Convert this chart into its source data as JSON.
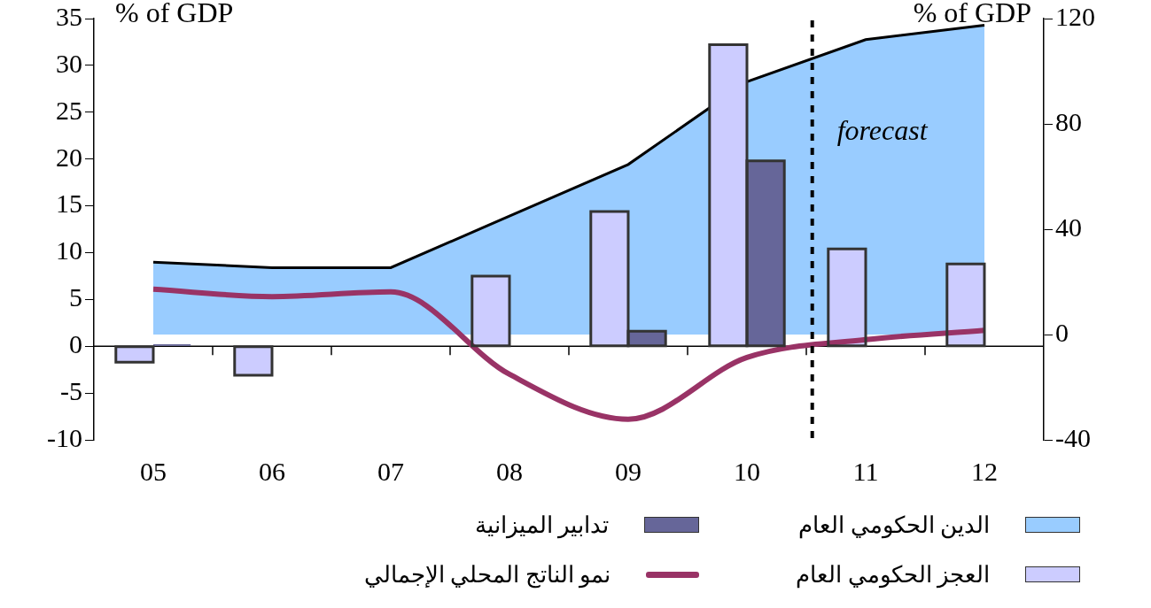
{
  "chart_data": {
    "type": "bar",
    "ylabel": "% of GDP",
    "y2label": "% of GDP",
    "x": [
      2005,
      2006,
      2007,
      2008,
      2009,
      2010,
      2011,
      2012
    ],
    "xlim": [
      2004.5,
      2012.5
    ],
    "xticks": [
      {
        "value": 2005,
        "label": "05"
      },
      {
        "value": 2005.5,
        "label": null
      },
      {
        "value": 2006,
        "label": "06"
      },
      {
        "value": 2006.5,
        "label": null
      },
      {
        "value": 2007,
        "label": "07"
      },
      {
        "value": 2007.5,
        "label": null
      },
      {
        "value": 2008,
        "label": "08"
      },
      {
        "value": 2008.5,
        "label": null
      },
      {
        "value": 2009,
        "label": "09"
      },
      {
        "value": 2009.5,
        "label": null
      },
      {
        "value": 2010,
        "label": "10"
      },
      {
        "value": 2010.5,
        "label": null
      },
      {
        "value": 2011,
        "label": "11"
      },
      {
        "value": 2011.5,
        "label": null
      },
      {
        "value": 2012,
        "label": "12"
      }
    ],
    "ylim": [
      -10,
      35
    ],
    "yticks": [
      -10,
      -5,
      0,
      5,
      10,
      15,
      20,
      25,
      30,
      35
    ],
    "y2lim": [
      -40,
      120
    ],
    "y2ticks": [
      -40,
      0,
      40,
      80,
      120
    ],
    "series": [
      {
        "name": "الدين الحكومي العام",
        "type": "area",
        "axis": "y2",
        "color": "#99ccff",
        "values": [
          27.5,
          25.4,
          25.4,
          45,
          64.6,
          96,
          112,
          117.5
        ]
      },
      {
        "name": "العجز الحكومي العام",
        "color": "#ccccff",
        "values": [
          -1.7,
          -3.1,
          null,
          7.5,
          14.4,
          32.2,
          10.4,
          8.8
        ]
      },
      {
        "name": "تدابير الميزانية",
        "color": "#666699",
        "values": [
          0.2,
          null,
          null,
          null,
          1.6,
          19.8,
          null,
          null
        ]
      },
      {
        "name": "نمو الناتج المحلي الإجمالي",
        "type": "line",
        "color": "#993366",
        "values": [
          6.1,
          5.3,
          5.8,
          -3,
          -7.8,
          -1.2,
          0.7,
          1.7
        ]
      }
    ],
    "ref_lines": [
      {
        "axis": "x",
        "value": 2010.55,
        "label": "forecast",
        "line_style": "dashed",
        "color": "#000000"
      }
    ],
    "marker": "none",
    "legend": "bottom"
  }
}
